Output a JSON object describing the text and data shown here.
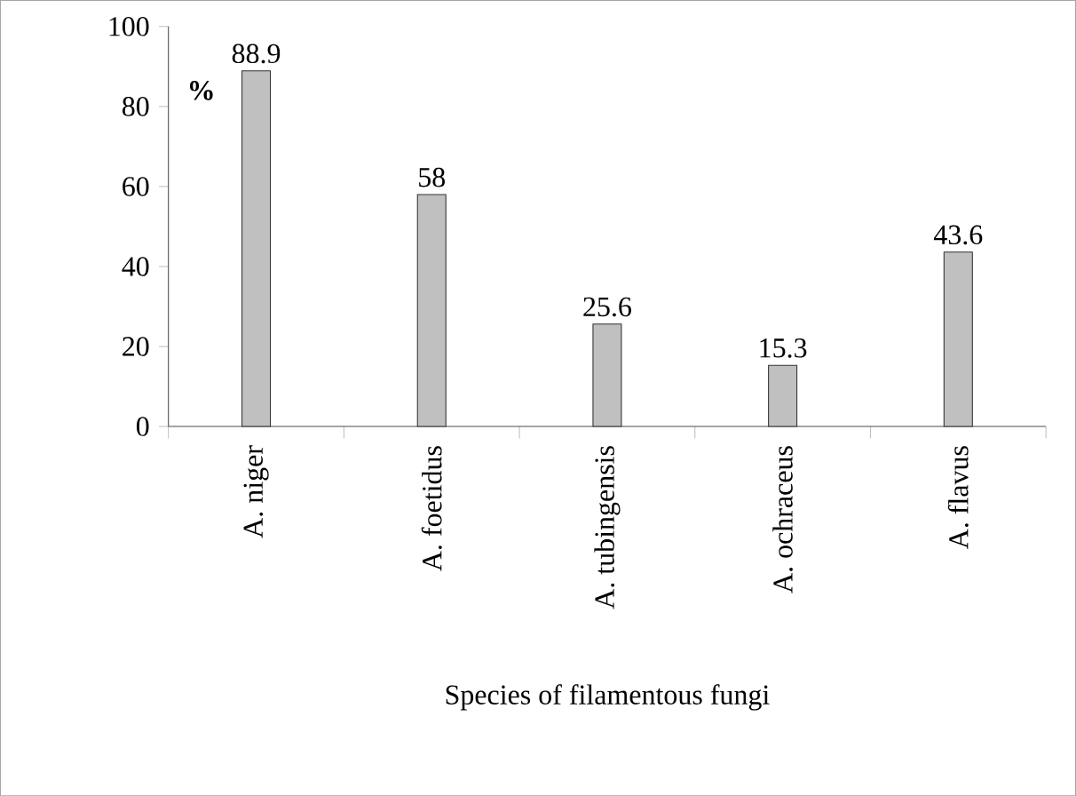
{
  "chart_data": {
    "type": "bar",
    "xlabel": "Species of filamentous fungi",
    "ylabel": "%",
    "categories": [
      "A. niger",
      "A. foetidus",
      "A. tubingensis",
      "A. ochraceus",
      "A. flavus"
    ],
    "values": [
      88.9,
      58,
      25.6,
      15.3,
      43.6
    ],
    "color": "#c0c0c0",
    "ylim": [
      0,
      100
    ],
    "yticks": [
      0,
      20,
      40,
      60,
      80,
      100
    ],
    "grid": false,
    "data_labels": true
  }
}
